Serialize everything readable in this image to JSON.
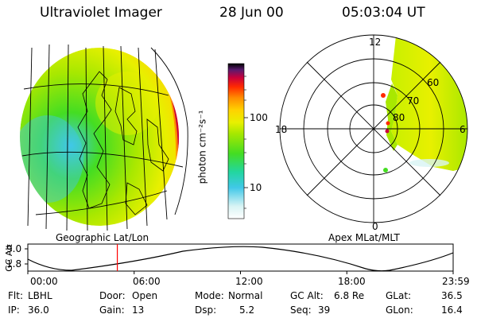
{
  "header": {
    "instrument": "Ultraviolet Imager",
    "date": "28 Jun 00",
    "time": "05:03:04 UT"
  },
  "colors": {
    "auroral_scale": [
      "#000000",
      "#5a1a6e",
      "#c8003c",
      "#ff2a00",
      "#ff8c00",
      "#ffd200",
      "#e8f000",
      "#a8e800",
      "#44dd22",
      "#22d6a0",
      "#40c8e8",
      "#d8f4f4",
      "#ffffff"
    ],
    "time_marker": "#ff0000"
  },
  "colorbar": {
    "unit_label": "photon cm⁻²s⁻¹",
    "tick_100": "100",
    "tick_10": "10",
    "scale": "log"
  },
  "geo_map": {
    "label": "Geographic Lat/Lon"
  },
  "polar_map": {
    "label": "Apex MLat/MLT",
    "mlt_12": "12",
    "mlt_18": "18",
    "mlt_6": "6",
    "mlt_0": "0",
    "lat_60": "60",
    "lat_70": "70",
    "lat_80": "80"
  },
  "orbit_plot": {
    "ylabel": "GC Alt",
    "ytick_high": "9.0",
    "ytick_low": "1.8",
    "xticks": [
      "00:00",
      "06:00",
      "12:00",
      "18:00",
      "23:59"
    ],
    "ylim": [
      1.8,
      9.0
    ],
    "marker_time_hours": 5.05
  },
  "info": {
    "flt_label": "Flt:",
    "flt_value": "LBHL",
    "ip_label": "IP:",
    "ip_value": "36.0",
    "door_label": "Door:",
    "door_value": "Open",
    "gain_label": "Gain:",
    "gain_value": "13",
    "mode_label": "Mode:",
    "mode_value": "Normal",
    "dsp_label": "Dsp:",
    "dsp_value": "5.2",
    "gcalt_label": "GC Alt:",
    "gcalt_value": "6.8 Re",
    "seq_label": "Seq:",
    "seq_value": "39",
    "glat_label": "GLat:",
    "glat_value": "36.5",
    "glon_label": "GLon:",
    "glon_value": "16.4"
  }
}
